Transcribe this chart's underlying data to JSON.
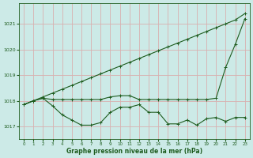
{
  "line1": {
    "x": [
      0,
      1,
      2,
      3,
      4,
      5,
      6,
      7,
      8,
      9,
      10,
      11,
      12,
      13,
      14,
      15,
      16,
      17,
      18,
      19,
      20,
      21,
      22,
      23
    ],
    "y": [
      1017.85,
      1018.0,
      1018.1,
      1017.8,
      1017.45,
      1017.25,
      1017.05,
      1017.05,
      1017.15,
      1017.55,
      1017.75,
      1017.75,
      1017.85,
      1017.55,
      1017.55,
      1017.1,
      1017.1,
      1017.25,
      1017.05,
      1017.3,
      1017.35,
      1017.2,
      1017.35,
      1017.35
    ]
  },
  "line2": {
    "x": [
      0,
      1,
      2,
      3,
      4,
      5,
      6,
      7,
      8,
      9,
      10,
      11,
      12,
      13,
      14,
      15,
      16,
      17,
      18,
      19,
      20,
      21,
      22,
      23
    ],
    "y": [
      1017.85,
      1018.0,
      1018.1,
      1018.05,
      1018.05,
      1018.05,
      1018.05,
      1018.05,
      1018.05,
      1018.15,
      1018.2,
      1018.2,
      1018.05,
      1018.05,
      1018.05,
      1018.05,
      1018.05,
      1018.05,
      1018.05,
      1018.05,
      1018.1,
      1019.3,
      1020.2,
      1021.2
    ]
  },
  "line3": {
    "x": [
      0,
      1,
      2,
      3,
      4,
      5,
      6,
      7,
      8,
      9,
      10,
      11,
      12,
      13,
      14,
      15,
      16,
      17,
      18,
      19,
      20,
      21,
      22,
      23
    ],
    "y": [
      1017.85,
      1018.0,
      1018.15,
      1018.3,
      1018.45,
      1018.6,
      1018.75,
      1018.9,
      1019.05,
      1019.2,
      1019.35,
      1019.5,
      1019.65,
      1019.8,
      1019.95,
      1020.1,
      1020.25,
      1020.4,
      1020.55,
      1020.7,
      1020.85,
      1021.0,
      1021.15,
      1021.4
    ]
  },
  "background_color": "#cceae7",
  "grid_color": "#d9b0b0",
  "line_color": "#1e5c1e",
  "xlabel": "Graphe pression niveau de la mer (hPa)",
  "ylim": [
    1016.5,
    1021.8
  ],
  "xlim": [
    -0.5,
    23.5
  ],
  "yticks": [
    1017,
    1018,
    1019,
    1020,
    1021
  ],
  "xticks": [
    0,
    1,
    2,
    3,
    4,
    5,
    6,
    7,
    8,
    9,
    10,
    11,
    12,
    13,
    14,
    15,
    16,
    17,
    18,
    19,
    20,
    21,
    22,
    23
  ],
  "marker": "+"
}
